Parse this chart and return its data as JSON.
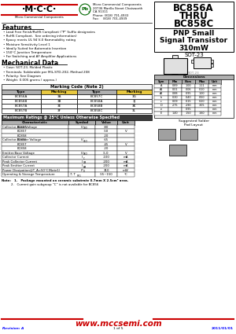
{
  "title1": "BC856A",
  "title2": "THRU",
  "title3": "BC858C",
  "subtitle1": "PNP Small",
  "subtitle2": "Signal Transistor",
  "subtitle3": "310mW",
  "features_title": "Features",
  "features": [
    "Lead Free Finish/RoHS Compliant (\"P\" Suffix designates",
    "RoHS Compliant.  See ordering information)",
    "Epoxy meets UL 94 V-0 flammability rating",
    "Moisture Sensitivity Level 1",
    "Ideally Suited for Automatic Insertion",
    "150°C Junction Temperature",
    "For Switching and AF Amplifier Applications"
  ],
  "mechanical_title": "Mechanical Data",
  "mechanical": [
    "Case: SOT-23, Molded Plastic",
    "Terminals: Solderable per MIL-STD-202, Method 208",
    "Polarity: See Diagram",
    "Weight: 0.005 grams ( approx.)"
  ],
  "marking_header": "Marking Code (Note 2)",
  "marking_cols": [
    "Type",
    "Marking",
    "Type",
    "Marking"
  ],
  "marking_rows": [
    [
      "BC856A",
      "3A",
      "BC857C",
      "3G"
    ],
    [
      "BC856B",
      "3B",
      "BC858A",
      "3J"
    ],
    [
      "BC857A",
      "3E",
      "BC858B",
      "3K"
    ],
    [
      "BC857B",
      "3F",
      "BC858C",
      "3L"
    ]
  ],
  "ratings_title": "Maximum Ratings @ 25°C Unless Otherwise Specified",
  "ratings_data": [
    [
      "Collector-Base Voltage",
      "BC856",
      "V_CBO",
      "-80",
      ""
    ],
    [
      "",
      "BC857",
      "",
      "-50",
      "V"
    ],
    [
      "",
      "BC858",
      "",
      "-20",
      ""
    ],
    [
      "Collector-Emitter Voltage",
      "BC856",
      "V_CEO",
      "-65",
      ""
    ],
    [
      "",
      "BC857",
      "",
      "-45",
      "V"
    ],
    [
      "",
      "BC858",
      "",
      "-20",
      ""
    ],
    [
      "Emitter-Base Voltage",
      "",
      "V_EBO",
      "-5.0",
      "V"
    ],
    [
      "Collector Current",
      "",
      "I_C",
      "-100",
      "mA"
    ],
    [
      "Peak Collector Current",
      "",
      "I_CM",
      "-200",
      "mA"
    ],
    [
      "Peak Emitter Current",
      "",
      "I_EM",
      "-200",
      "mA"
    ],
    [
      "Power Dissipation@T_A=50°C(Note1)",
      "",
      "P_D",
      "310",
      "mW"
    ],
    [
      "Operating & Storage Temperature",
      "",
      "T, T_STG",
      "-55~150",
      "°C"
    ]
  ],
  "note1": "Note:   1.   Package mounted on ceramic substrate 0.7mm X 2.5cm² area.",
  "note2": "2.   Current gain subgroup “C” is not available for BC856",
  "website": "www.mccsemi.com",
  "revision": "Revision: A",
  "page": "1 of 5",
  "date": "2011/01/01",
  "package": "SOT-23",
  "bg_color": "#ffffff",
  "red_color": "#cc0000",
  "header_dark": "#3a3a3a",
  "marking_header_bg": "#e8c840",
  "col_header_bg": "#b0b0b0",
  "company_lines": [
    "Micro Commercial Components",
    "20736 Marilla Street Chatsworth",
    "CA 91311",
    "Phone: (818) 701-4933",
    "Fax:    (818) 701-4939"
  ]
}
